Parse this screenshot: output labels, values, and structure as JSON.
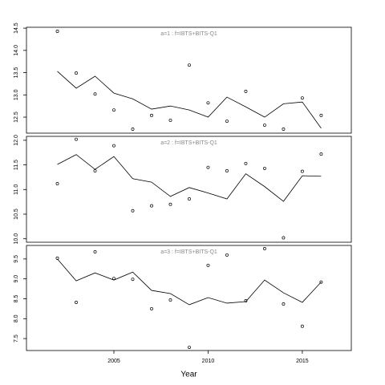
{
  "chart_data": [
    {
      "type": "line",
      "title": "a=1 : f=IBTS+BITS-Q1",
      "x": [
        2002,
        2003,
        2004,
        2005,
        2006,
        2007,
        2008,
        2009,
        2010,
        2011,
        2012,
        2013,
        2014,
        2015,
        2016
      ],
      "series": [
        {
          "style": "points",
          "color": "#000000",
          "values": [
            14.43,
            13.49,
            13.02,
            12.66,
            12.23,
            12.54,
            12.43,
            13.67,
            12.82,
            12.41,
            13.08,
            12.32,
            12.23,
            12.93,
            12.54
          ]
        },
        {
          "style": "line",
          "color": "#000000",
          "values": [
            13.53,
            13.15,
            13.42,
            13.04,
            12.91,
            12.68,
            12.75,
            12.66,
            12.5,
            12.95,
            12.73,
            12.5,
            12.8,
            12.84,
            12.25
          ]
        }
      ],
      "xlim": [
        2000.36,
        2017.6
      ],
      "ylim": [
        12.14,
        14.52
      ],
      "yticks": [
        {
          "value": 12.5,
          "label": "12.5"
        },
        {
          "value": 13,
          "label": "13.0"
        },
        13.5,
        {
          "value": 14,
          "label": "14.0"
        },
        14.5
      ]
    },
    {
      "type": "line",
      "title": "a=2 : f=IBTS+BITS-Q1",
      "x": [
        2002,
        2003,
        2004,
        2005,
        2006,
        2007,
        2008,
        2009,
        2010,
        2011,
        2012,
        2013,
        2014,
        2015,
        2016
      ],
      "series": [
        {
          "style": "points",
          "color": "#000000",
          "values": [
            11.12,
            12.02,
            11.38,
            11.89,
            10.57,
            10.67,
            10.7,
            10.81,
            11.45,
            11.38,
            11.53,
            11.43,
            10.02,
            11.37,
            11.72
          ]
        },
        {
          "style": "line",
          "color": "#000000",
          "values": [
            11.51,
            11.71,
            11.41,
            11.67,
            11.22,
            11.15,
            10.86,
            11.04,
            10.93,
            10.81,
            11.32,
            11.06,
            10.76,
            11.28,
            11.27
          ]
        }
      ],
      "xlim": [
        2000.36,
        2017.6
      ],
      "ylim": [
        9.93,
        12.08
      ],
      "yticks": [
        {
          "value": 10,
          "label": "10.0"
        },
        10.5,
        {
          "value": 11,
          "label": "11.0"
        },
        11.5,
        {
          "value": 12,
          "label": "12.0"
        }
      ]
    },
    {
      "type": "line",
      "title": "a=3 : f=IBTS+BITS-Q1",
      "x": [
        2002,
        2003,
        2004,
        2005,
        2006,
        2007,
        2008,
        2009,
        2010,
        2011,
        2012,
        2013,
        2014,
        2015,
        2016
      ],
      "series": [
        {
          "style": "points",
          "color": "#000000",
          "values": [
            9.52,
            8.41,
            9.68,
            9.01,
            8.99,
            8.25,
            8.47,
            7.28,
            9.34,
            9.6,
            8.45,
            9.76,
            8.37,
            7.81,
            8.92
          ]
        },
        {
          "style": "line",
          "color": "#000000",
          "values": [
            9.5,
            8.95,
            9.15,
            8.97,
            9.17,
            8.71,
            8.63,
            8.35,
            8.53,
            8.39,
            8.43,
            8.97,
            8.65,
            8.41,
            8.92
          ]
        }
      ],
      "xlim": [
        2000.36,
        2017.6
      ],
      "ylim": [
        7.2,
        9.84
      ],
      "yticks": [
        7.5,
        {
          "value": 8,
          "label": "8.0"
        },
        8.5,
        {
          "value": 9,
          "label": "9.0"
        },
        9.5
      ],
      "xticks": [
        2005,
        2010,
        2015
      ],
      "xlabel": "Year"
    }
  ]
}
